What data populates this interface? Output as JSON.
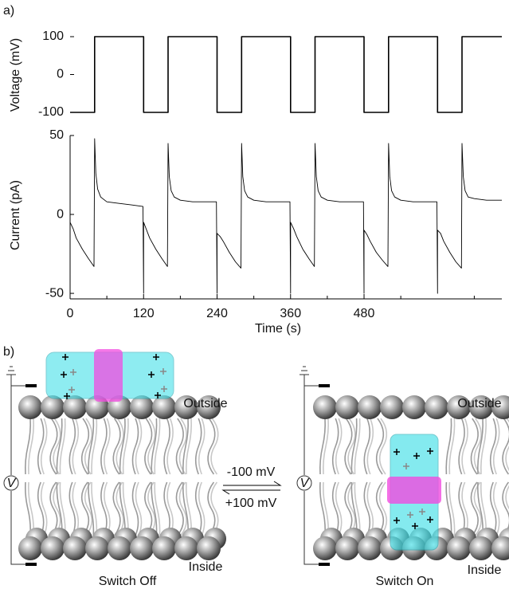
{
  "chart_data": [
    {
      "type": "line",
      "panel_label": "a)",
      "ylabel": "Voltage (mV)",
      "color": "#000000",
      "x": [
        0,
        40,
        40,
        120,
        120,
        160,
        160,
        240,
        240,
        280,
        280,
        360,
        360,
        400,
        400,
        480,
        480,
        520,
        520,
        600,
        600,
        640,
        640,
        705
      ],
      "values": [
        -100,
        -100,
        100,
        100,
        -100,
        -100,
        100,
        100,
        -100,
        -100,
        100,
        100,
        -100,
        -100,
        100,
        100,
        -100,
        -100,
        100,
        100,
        -100,
        -100,
        100,
        100
      ],
      "xlim": [
        0,
        705
      ],
      "ylim": [
        -100,
        100
      ],
      "yticks": [
        -100,
        0,
        100
      ]
    },
    {
      "type": "line",
      "ylabel": "Current (pA)",
      "xlabel": "Time (s)",
      "color": "#000000",
      "x": [
        0,
        5,
        10,
        20,
        30,
        39,
        40,
        42,
        45,
        50,
        60,
        80,
        100,
        119,
        120,
        120,
        125,
        130,
        140,
        150,
        159,
        160,
        162,
        165,
        170,
        180,
        200,
        220,
        239,
        240,
        240,
        245,
        250,
        260,
        270,
        279,
        280,
        282,
        285,
        290,
        300,
        320,
        340,
        359,
        360,
        360,
        365,
        370,
        380,
        390,
        399,
        400,
        402,
        405,
        410,
        420,
        440,
        460,
        479,
        480,
        480,
        485,
        490,
        500,
        510,
        519,
        520,
        522,
        525,
        530,
        540,
        560,
        580,
        599,
        600,
        600,
        605,
        610,
        620,
        630,
        639,
        640,
        642,
        645,
        650,
        660,
        680,
        705
      ],
      "values": [
        -5,
        -9,
        -15,
        -22,
        -28,
        -33,
        48,
        26,
        16,
        11,
        8,
        7,
        6,
        5,
        -50,
        -5,
        -10,
        -15,
        -22,
        -28,
        -33,
        45,
        24,
        15,
        11,
        9,
        8,
        8,
        8,
        -50,
        -12,
        -14,
        -17,
        -24,
        -30,
        -34,
        45,
        24,
        15,
        11,
        9,
        8,
        8,
        8,
        -50,
        -5,
        -9,
        -14,
        -22,
        -28,
        -33,
        45,
        24,
        15,
        11,
        9,
        8,
        8,
        8,
        -50,
        -10,
        -13,
        -17,
        -24,
        -29,
        -33,
        45,
        24,
        15,
        11,
        9,
        8,
        8,
        8,
        -50,
        -10,
        -12,
        -17,
        -24,
        -30,
        -34,
        45,
        24,
        15,
        11,
        10,
        9,
        9
      ],
      "xlim": [
        0,
        705
      ],
      "ylim": [
        -53.5,
        50
      ],
      "yticks": [
        -50,
        0,
        50
      ],
      "xticks": [
        0,
        120,
        240,
        360,
        480
      ],
      "xminorticks": [
        60,
        180,
        300,
        420,
        540,
        660
      ]
    }
  ],
  "diagram": {
    "panel_label": "b)",
    "left": {
      "outside": "Outside",
      "inside": "Inside",
      "caption": "Switch Off",
      "meter": "V"
    },
    "right": {
      "outside": "Outside",
      "inside": "Inside",
      "caption": "Switch On",
      "meter": "V"
    },
    "arrow_top": "-100 mV",
    "arrow_bottom": "+100 mV"
  }
}
